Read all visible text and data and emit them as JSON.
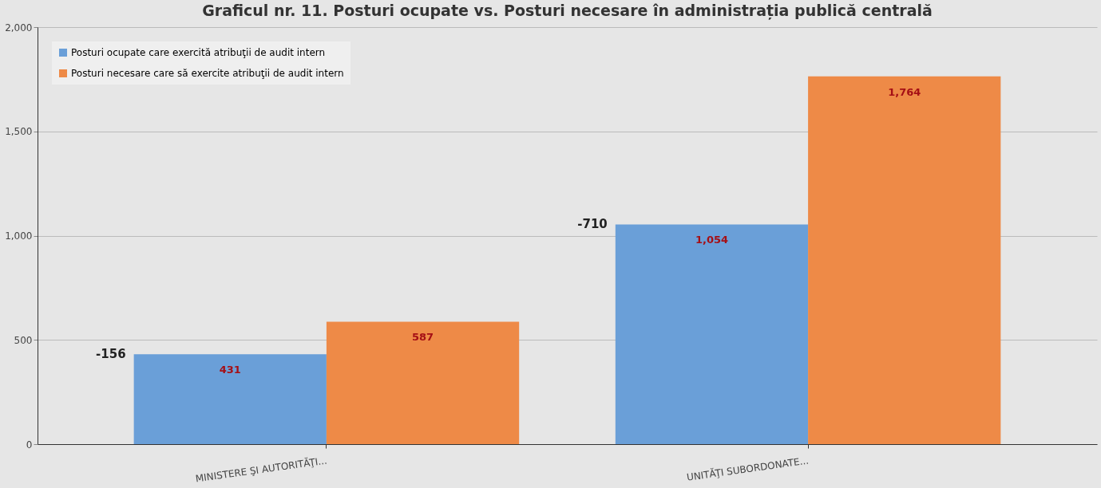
{
  "chart_data": {
    "type": "bar",
    "title": "Graficul nr. 11. Posturi ocupate vs. Posturi necesare în administrația publică centrală",
    "categories": [
      "MINISTERE ŞI AUTORITĂŢI...",
      "UNITĂŢI SUBORDONATE..."
    ],
    "series": [
      {
        "name": "Posturi ocupate care exercită atribuţii de audit intern",
        "color": "#6a9fd8",
        "values": [
          431,
          1054
        ],
        "value_labels": [
          "431",
          "1,054"
        ]
      },
      {
        "name": "Posturi necesare care să exercite atribuţii de audit intern",
        "color": "#ee8a47",
        "values": [
          587,
          1764
        ],
        "value_labels": [
          "587",
          "1,764"
        ]
      }
    ],
    "ylim": [
      0,
      2000
    ],
    "yticks": [
      0,
      {
        "value": 500,
        "label": "500"
      },
      {
        "value": 1000,
        "label": "1,000"
      },
      {
        "value": 1500,
        "label": "1,500"
      },
      {
        "value": 2000,
        "label": "2,000"
      }
    ],
    "grid": "y",
    "legend": "top left",
    "annotations": [
      "-156",
      "-710"
    ]
  }
}
